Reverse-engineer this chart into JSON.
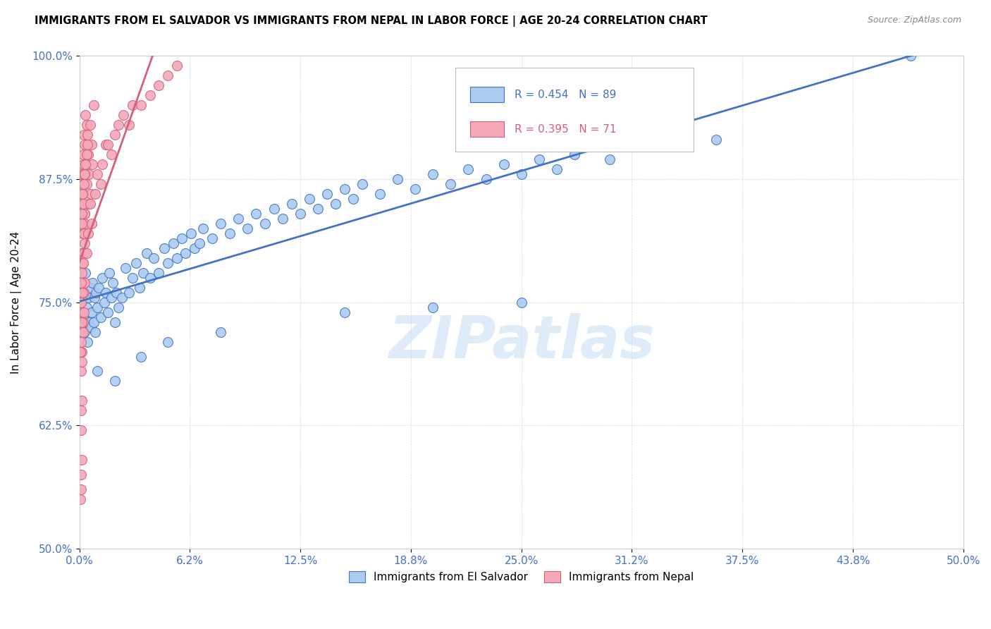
{
  "title": "IMMIGRANTS FROM EL SALVADOR VS IMMIGRANTS FROM NEPAL IN LABOR FORCE | AGE 20-24 CORRELATION CHART",
  "source": "Source: ZipAtlas.com",
  "ylabel_label": "In Labor Force | Age 20-24",
  "yticks": [
    50.0,
    62.5,
    75.0,
    87.5,
    100.0
  ],
  "xticks": [
    0.0,
    6.25,
    12.5,
    18.75,
    25.0,
    31.25,
    37.5,
    43.75,
    50.0
  ],
  "watermark": "ZIPatlas",
  "blue_color": "#aaccf0",
  "blue_line_color": "#4472c4",
  "pink_color": "#f4a8b8",
  "pink_line_color": "#d4607a",
  "blue_scatter": [
    [
      0.1,
      75.0
    ],
    [
      0.15,
      74.0
    ],
    [
      0.2,
      73.5
    ],
    [
      0.25,
      76.0
    ],
    [
      0.3,
      72.0
    ],
    [
      0.35,
      78.0
    ],
    [
      0.4,
      74.5
    ],
    [
      0.45,
      71.0
    ],
    [
      0.5,
      75.5
    ],
    [
      0.55,
      73.0
    ],
    [
      0.6,
      76.5
    ],
    [
      0.65,
      72.5
    ],
    [
      0.7,
      74.0
    ],
    [
      0.75,
      77.0
    ],
    [
      0.8,
      73.0
    ],
    [
      0.85,
      75.5
    ],
    [
      0.9,
      72.0
    ],
    [
      0.95,
      76.0
    ],
    [
      1.0,
      74.5
    ],
    [
      1.1,
      76.5
    ],
    [
      1.2,
      73.5
    ],
    [
      1.3,
      77.5
    ],
    [
      1.4,
      75.0
    ],
    [
      1.5,
      76.0
    ],
    [
      1.6,
      74.0
    ],
    [
      1.7,
      78.0
    ],
    [
      1.8,
      75.5
    ],
    [
      1.9,
      77.0
    ],
    [
      2.0,
      73.0
    ],
    [
      2.1,
      76.0
    ],
    [
      2.2,
      74.5
    ],
    [
      2.4,
      75.5
    ],
    [
      2.6,
      78.5
    ],
    [
      2.8,
      76.0
    ],
    [
      3.0,
      77.5
    ],
    [
      3.2,
      79.0
    ],
    [
      3.4,
      76.5
    ],
    [
      3.6,
      78.0
    ],
    [
      3.8,
      80.0
    ],
    [
      4.0,
      77.5
    ],
    [
      4.2,
      79.5
    ],
    [
      4.5,
      78.0
    ],
    [
      4.8,
      80.5
    ],
    [
      5.0,
      79.0
    ],
    [
      5.3,
      81.0
    ],
    [
      5.5,
      79.5
    ],
    [
      5.8,
      81.5
    ],
    [
      6.0,
      80.0
    ],
    [
      6.3,
      82.0
    ],
    [
      6.5,
      80.5
    ],
    [
      6.8,
      81.0
    ],
    [
      7.0,
      82.5
    ],
    [
      7.5,
      81.5
    ],
    [
      8.0,
      83.0
    ],
    [
      8.5,
      82.0
    ],
    [
      9.0,
      83.5
    ],
    [
      9.5,
      82.5
    ],
    [
      10.0,
      84.0
    ],
    [
      10.5,
      83.0
    ],
    [
      11.0,
      84.5
    ],
    [
      11.5,
      83.5
    ],
    [
      12.0,
      85.0
    ],
    [
      12.5,
      84.0
    ],
    [
      13.0,
      85.5
    ],
    [
      13.5,
      84.5
    ],
    [
      14.0,
      86.0
    ],
    [
      14.5,
      85.0
    ],
    [
      15.0,
      86.5
    ],
    [
      15.5,
      85.5
    ],
    [
      16.0,
      87.0
    ],
    [
      17.0,
      86.0
    ],
    [
      18.0,
      87.5
    ],
    [
      19.0,
      86.5
    ],
    [
      20.0,
      88.0
    ],
    [
      21.0,
      87.0
    ],
    [
      22.0,
      88.5
    ],
    [
      23.0,
      87.5
    ],
    [
      24.0,
      89.0
    ],
    [
      25.0,
      88.0
    ],
    [
      26.0,
      89.5
    ],
    [
      27.0,
      88.5
    ],
    [
      28.0,
      90.0
    ],
    [
      30.0,
      89.5
    ],
    [
      33.0,
      91.0
    ],
    [
      36.0,
      91.5
    ],
    [
      1.0,
      68.0
    ],
    [
      2.0,
      67.0
    ],
    [
      3.5,
      69.5
    ],
    [
      5.0,
      71.0
    ],
    [
      8.0,
      72.0
    ],
    [
      15.0,
      74.0
    ],
    [
      20.0,
      74.5
    ],
    [
      25.0,
      75.0
    ],
    [
      47.0,
      100.0
    ]
  ],
  "pink_scatter": [
    [
      0.05,
      75.0
    ],
    [
      0.08,
      80.0
    ],
    [
      0.1,
      85.0
    ],
    [
      0.12,
      78.0
    ],
    [
      0.15,
      88.0
    ],
    [
      0.18,
      82.0
    ],
    [
      0.2,
      90.0
    ],
    [
      0.22,
      86.0
    ],
    [
      0.25,
      92.0
    ],
    [
      0.28,
      84.0
    ],
    [
      0.3,
      91.0
    ],
    [
      0.32,
      88.0
    ],
    [
      0.35,
      94.0
    ],
    [
      0.38,
      89.0
    ],
    [
      0.4,
      93.0
    ],
    [
      0.42,
      87.0
    ],
    [
      0.45,
      92.0
    ],
    [
      0.48,
      85.0
    ],
    [
      0.5,
      90.0
    ],
    [
      0.55,
      88.0
    ],
    [
      0.6,
      93.0
    ],
    [
      0.65,
      86.0
    ],
    [
      0.7,
      91.0
    ],
    [
      0.75,
      89.0
    ],
    [
      0.8,
      95.0
    ],
    [
      0.1,
      72.0
    ],
    [
      0.15,
      76.0
    ],
    [
      0.2,
      79.0
    ],
    [
      0.25,
      82.0
    ],
    [
      0.3,
      84.0
    ],
    [
      0.1,
      70.0
    ],
    [
      0.15,
      74.0
    ],
    [
      0.2,
      77.0
    ],
    [
      0.25,
      80.0
    ],
    [
      0.3,
      83.0
    ],
    [
      0.08,
      68.0
    ],
    [
      0.12,
      65.0
    ],
    [
      0.15,
      70.0
    ],
    [
      0.2,
      73.0
    ],
    [
      0.25,
      76.0
    ],
    [
      0.1,
      71.0
    ],
    [
      0.15,
      69.0
    ],
    [
      0.2,
      72.0
    ],
    [
      0.25,
      74.0
    ],
    [
      0.3,
      77.0
    ],
    [
      0.08,
      62.0
    ],
    [
      0.12,
      59.0
    ],
    [
      0.1,
      56.0
    ],
    [
      0.4,
      80.0
    ],
    [
      0.5,
      82.0
    ],
    [
      0.15,
      87.0
    ],
    [
      0.2,
      89.0
    ],
    [
      0.12,
      84.0
    ],
    [
      0.18,
      86.0
    ],
    [
      0.25,
      88.0
    ],
    [
      0.08,
      77.0
    ],
    [
      0.12,
      79.0
    ],
    [
      0.3,
      88.0
    ],
    [
      0.4,
      90.0
    ],
    [
      0.1,
      75.0
    ],
    [
      0.05,
      70.0
    ],
    [
      0.12,
      73.0
    ],
    [
      0.18,
      76.0
    ],
    [
      0.22,
      79.0
    ],
    [
      0.28,
      81.0
    ],
    [
      0.15,
      83.0
    ],
    [
      0.2,
      85.0
    ],
    [
      0.25,
      87.0
    ],
    [
      0.35,
      89.0
    ],
    [
      0.45,
      91.0
    ],
    [
      0.08,
      64.0
    ],
    [
      1.0,
      88.0
    ],
    [
      1.5,
      91.0
    ],
    [
      2.0,
      92.0
    ],
    [
      2.5,
      94.0
    ],
    [
      3.0,
      95.0
    ],
    [
      1.2,
      87.0
    ],
    [
      1.8,
      90.0
    ],
    [
      2.8,
      93.0
    ],
    [
      0.6,
      85.0
    ],
    [
      0.7,
      83.0
    ],
    [
      0.9,
      86.0
    ],
    [
      1.3,
      89.0
    ],
    [
      1.6,
      91.0
    ],
    [
      2.2,
      93.0
    ],
    [
      3.5,
      95.0
    ],
    [
      4.0,
      96.0
    ],
    [
      4.5,
      97.0
    ],
    [
      5.0,
      98.0
    ],
    [
      5.5,
      99.0
    ],
    [
      0.05,
      55.0
    ],
    [
      0.1,
      57.5
    ]
  ]
}
